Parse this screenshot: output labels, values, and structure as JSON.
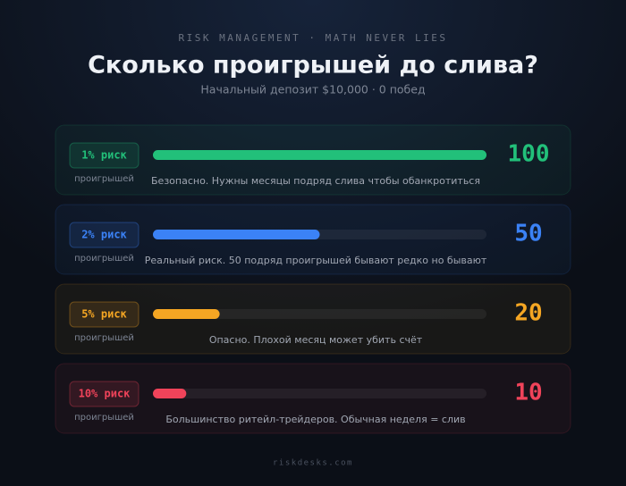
{
  "chart_data": {
    "type": "bar",
    "orientation": "horizontal",
    "eyebrow": "RISK MANAGEMENT · MATH NEVER LIES",
    "title": "Сколько проигрышей до слива?",
    "subtitle": "Начальный депозит $10,000 · 0 побед",
    "categories": [
      "1% риск",
      "2% риск",
      "5% риск",
      "10% риск"
    ],
    "values": [
      100,
      50,
      20,
      10
    ],
    "unit": "проигрышей",
    "notes": [
      "Безопасно. Нужны месяцы подряд слива чтобы обанкротиться",
      "Реальный риск. 50 подряд проигрышей бывают редко но бывают",
      "Опасно. Плохой месяц может убить счёт",
      "Большинство ритейл-трейдеров. Обычная неделя = слив"
    ],
    "colors": [
      "#22c07a",
      "#3b82f6",
      "#f5a623",
      "#f0435a"
    ],
    "xlim": [
      0,
      100
    ],
    "footer": "riskdesks.com"
  }
}
